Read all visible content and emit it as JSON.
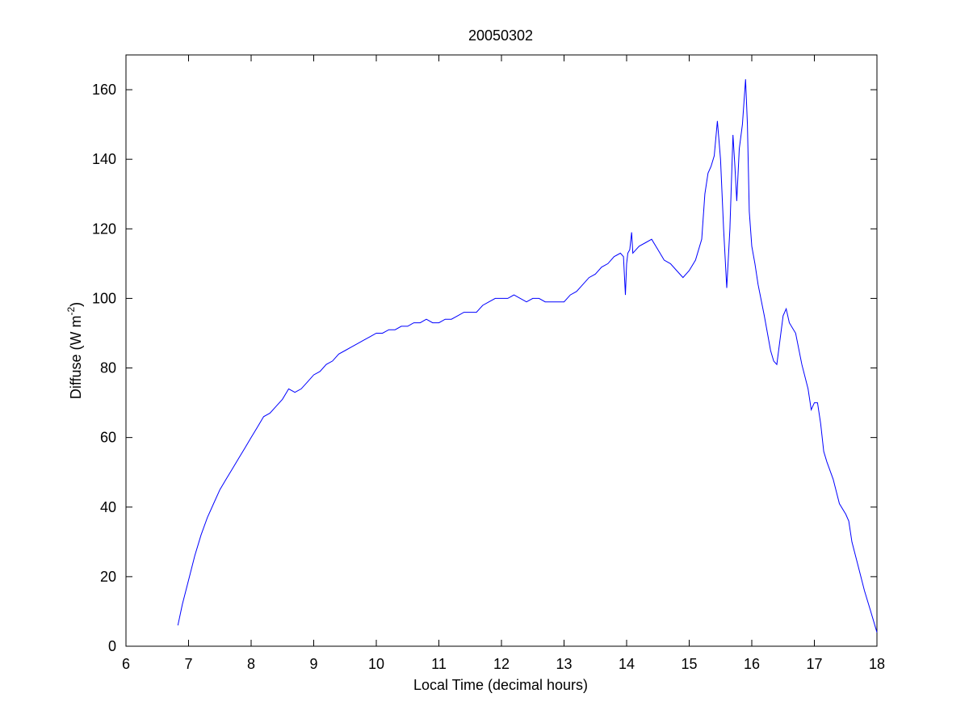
{
  "chart_data": {
    "type": "line",
    "title": "20050302",
    "xlabel": "Local Time (decimal hours)",
    "ylabel": {
      "main": "Diffuse (W m",
      "superscript": "-2",
      "close": ")"
    },
    "xlim": [
      6,
      18
    ],
    "ylim": [
      0,
      170
    ],
    "xticks": [
      6,
      7,
      8,
      9,
      10,
      11,
      12,
      13,
      14,
      15,
      16,
      17,
      18
    ],
    "yticks": [
      0,
      20,
      40,
      60,
      80,
      100,
      120,
      140,
      160
    ],
    "grid": false,
    "line_color": "#0000ff",
    "series": [
      {
        "x": [
          6.83,
          6.9,
          7.0,
          7.1,
          7.2,
          7.3,
          7.4,
          7.5,
          7.6,
          7.7,
          7.8,
          7.9,
          8.0,
          8.1,
          8.2,
          8.3,
          8.4,
          8.5,
          8.6,
          8.7,
          8.8,
          8.9,
          9.0,
          9.1,
          9.2,
          9.3,
          9.4,
          9.5,
          9.6,
          9.7,
          9.8,
          9.9,
          10.0,
          10.1,
          10.2,
          10.3,
          10.4,
          10.5,
          10.6,
          10.7,
          10.8,
          10.9,
          11.0,
          11.1,
          11.2,
          11.3,
          11.4,
          11.5,
          11.6,
          11.7,
          11.8,
          11.9,
          12.0,
          12.1,
          12.2,
          12.3,
          12.4,
          12.5,
          12.6,
          12.7,
          12.8,
          12.9,
          13.0,
          13.1,
          13.2,
          13.3,
          13.4,
          13.5,
          13.6,
          13.7,
          13.8,
          13.9,
          13.95,
          13.98,
          14.0,
          14.02,
          14.05,
          14.08,
          14.1,
          14.15,
          14.2,
          14.3,
          14.4,
          14.5,
          14.6,
          14.7,
          14.8,
          14.9,
          15.0,
          15.1,
          15.2,
          15.25,
          15.3,
          15.35,
          15.4,
          15.45,
          15.5,
          15.55,
          15.6,
          15.65,
          15.7,
          15.73,
          15.76,
          15.8,
          15.85,
          15.9,
          15.93,
          15.96,
          16.0,
          16.05,
          16.1,
          16.2,
          16.3,
          16.35,
          16.4,
          16.45,
          16.5,
          16.55,
          16.6,
          16.7,
          16.8,
          16.9,
          16.95,
          17.0,
          17.05,
          17.1,
          17.15,
          17.2,
          17.3,
          17.4,
          17.5,
          17.55,
          17.6,
          17.7,
          17.8,
          17.9,
          18.0
        ],
        "y": [
          6,
          12,
          19,
          26,
          32,
          37,
          41,
          45,
          48,
          51,
          54,
          57,
          60,
          63,
          66,
          67,
          69,
          71,
          74,
          73,
          74,
          76,
          78,
          79,
          81,
          82,
          84,
          85,
          86,
          87,
          88,
          89,
          90,
          90,
          91,
          91,
          92,
          92,
          93,
          93,
          94,
          93,
          93,
          94,
          94,
          95,
          96,
          96,
          96,
          98,
          99,
          100,
          100,
          100,
          101,
          100,
          99,
          100,
          100,
          99,
          99,
          99,
          99,
          101,
          102,
          104,
          106,
          107,
          109,
          110,
          112,
          113,
          112,
          101,
          110,
          113,
          114,
          119,
          113,
          114,
          115,
          116,
          117,
          114,
          111,
          110,
          108,
          106,
          108,
          111,
          117,
          130,
          136,
          138,
          141,
          151,
          140,
          120,
          103,
          120,
          147,
          138,
          128,
          143,
          150,
          163,
          150,
          125,
          115,
          110,
          104,
          95,
          85,
          82,
          81,
          88,
          95,
          97,
          93,
          90,
          81,
          74,
          68,
          70,
          70,
          64,
          56,
          53,
          48,
          41,
          38,
          36,
          30,
          23,
          16,
          10,
          4
        ]
      }
    ]
  }
}
